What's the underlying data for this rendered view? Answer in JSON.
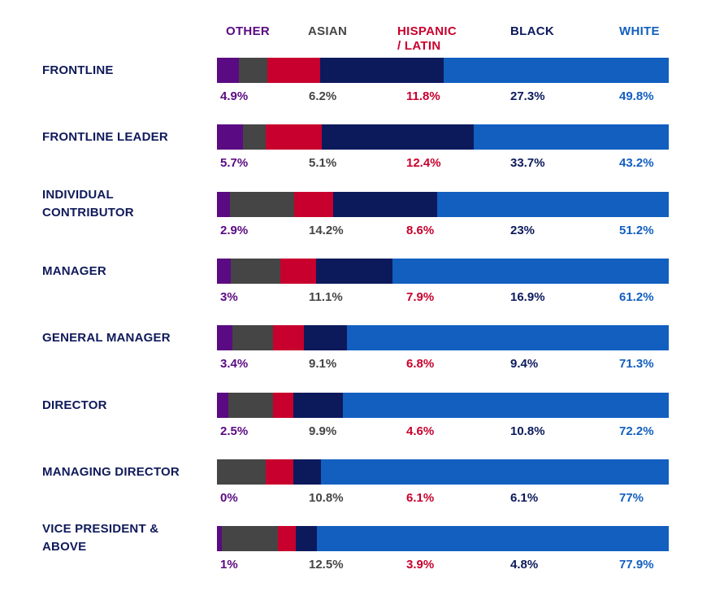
{
  "chart_data": {
    "type": "bar",
    "orientation": "horizontal",
    "stacked": true,
    "normalized": true,
    "legend_placement": "top",
    "grid": false,
    "categories": [
      "FRONTLINE",
      "FRONTLINE LEADER",
      "INDIVIDUAL\nCONTRIBUTOR",
      "MANAGER",
      "GENERAL MANAGER",
      "DIRECTOR",
      "MANAGING DIRECTOR",
      "VICE PRESIDENT &\nABOVE"
    ],
    "series": [
      {
        "name": "OTHER",
        "color": "#5a0a82",
        "value_labels": [
          "4.9%",
          "5.7%",
          "2.9%",
          "3%",
          "3.4%",
          "2.5%",
          "0%",
          "1%"
        ],
        "values": [
          4.9,
          5.7,
          2.9,
          3,
          3.4,
          2.5,
          0,
          1
        ]
      },
      {
        "name": "ASIAN",
        "color": "#454545",
        "value_labels": [
          "6.2%",
          "5.1%",
          "14.2%",
          "11.1%",
          "9.1%",
          "9.9%",
          "10.8%",
          "12.5%"
        ],
        "values": [
          6.2,
          5.1,
          14.2,
          11.1,
          9.1,
          9.9,
          10.8,
          12.5
        ]
      },
      {
        "name": "HISPANIC\n/ LATIN",
        "color": "#c8002d",
        "value_labels": [
          "11.8%",
          "12.4%",
          "8.6%",
          "7.9%",
          "6.8%",
          "4.6%",
          "6.1%",
          "3.9%"
        ],
        "values": [
          11.8,
          12.4,
          8.6,
          7.9,
          6.8,
          4.6,
          6.1,
          3.9
        ]
      },
      {
        "name": "BLACK",
        "color": "#0c1a5c",
        "value_labels": [
          "27.3%",
          "33.7%",
          "23%",
          "16.9%",
          "9.4%",
          "10.8%",
          "6.1%",
          "4.8%"
        ],
        "values": [
          27.3,
          33.7,
          23,
          16.9,
          9.4,
          10.8,
          6.1,
          4.8
        ]
      },
      {
        "name": "WHITE",
        "color": "#125fc0",
        "value_labels": [
          "49.8%",
          "43.2%",
          "51.2%",
          "61.2%",
          "71.3%",
          "72.2%",
          "77%",
          "77.9%"
        ],
        "values": [
          49.8,
          43.2,
          51.2,
          61.2,
          71.3,
          72.2,
          77,
          77.9
        ]
      }
    ]
  },
  "colors": {
    "row_label": "#0f1a5a",
    "black_text": "#0c1a5c",
    "white_text": "#125fc0"
  }
}
